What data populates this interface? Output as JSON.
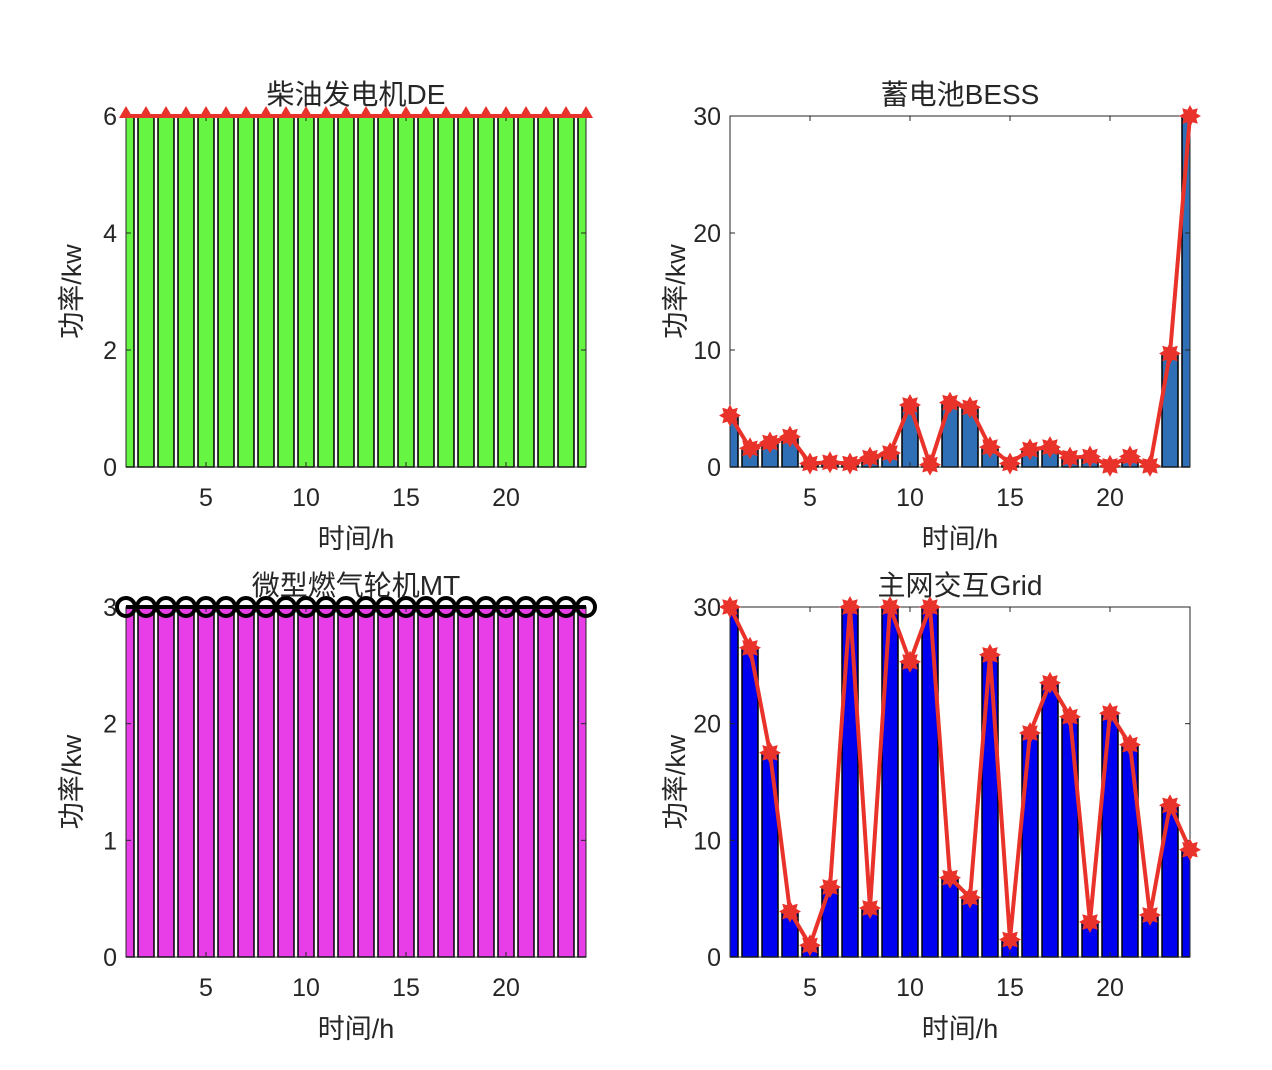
{
  "chart_data": [
    {
      "type": "bar",
      "title": "柴油发电机DE",
      "xlabel": "时间/h",
      "ylabel": "功率/kw",
      "x": [
        1,
        2,
        3,
        4,
        5,
        6,
        7,
        8,
        9,
        10,
        11,
        12,
        13,
        14,
        15,
        16,
        17,
        18,
        19,
        20,
        21,
        22,
        23,
        24
      ],
      "values": [
        6,
        6,
        6,
        6,
        6,
        6,
        6,
        6,
        6,
        6,
        6,
        6,
        6,
        6,
        6,
        6,
        6,
        6,
        6,
        6,
        6,
        6,
        6,
        6
      ],
      "xlim": [
        1,
        24
      ],
      "ylim": [
        0,
        6
      ],
      "xticks": [
        5,
        10,
        15,
        20
      ],
      "yticks": [
        0,
        2,
        4,
        6
      ],
      "bar_color": "#66f542",
      "line_color": "#e8322a",
      "marker": "triangle-up"
    },
    {
      "type": "bar",
      "title": "蓄电池BESS",
      "xlabel": "时间/h",
      "ylabel": "功率/kw",
      "x": [
        1,
        2,
        3,
        4,
        5,
        6,
        7,
        8,
        9,
        10,
        11,
        12,
        13,
        14,
        15,
        16,
        17,
        18,
        19,
        20,
        21,
        22,
        23,
        24
      ],
      "values": [
        4.4,
        1.6,
        2.1,
        2.6,
        0.3,
        0.4,
        0.3,
        0.8,
        1.2,
        5.3,
        0.2,
        5.5,
        5.1,
        1.7,
        0.3,
        1.5,
        1.7,
        0.8,
        0.9,
        0.1,
        0.9,
        0.1,
        9.7,
        30
      ],
      "xlim": [
        1,
        24
      ],
      "ylim": [
        0,
        30
      ],
      "xticks": [
        5,
        10,
        15,
        20
      ],
      "yticks": [
        0,
        10,
        20,
        30
      ],
      "bar_color": "#2f6fb5",
      "line_color": "#e8322a",
      "marker": "star"
    },
    {
      "type": "bar",
      "title": "微型燃气轮机MT",
      "xlabel": "时间/h",
      "ylabel": "功率/kw",
      "x": [
        1,
        2,
        3,
        4,
        5,
        6,
        7,
        8,
        9,
        10,
        11,
        12,
        13,
        14,
        15,
        16,
        17,
        18,
        19,
        20,
        21,
        22,
        23,
        24
      ],
      "values": [
        3,
        3,
        3,
        3,
        3,
        3,
        3,
        3,
        3,
        3,
        3,
        3,
        3,
        3,
        3,
        3,
        3,
        3,
        3,
        3,
        3,
        3,
        3,
        3
      ],
      "xlim": [
        1,
        24
      ],
      "ylim": [
        0,
        3
      ],
      "xticks": [
        5,
        10,
        15,
        20
      ],
      "yticks": [
        0,
        1,
        2,
        3
      ],
      "bar_color": "#e83ee8",
      "line_color": "#000000",
      "marker": "circle"
    },
    {
      "type": "bar",
      "title": "主网交互Grid",
      "xlabel": "时间/h",
      "ylabel": "功率/kw",
      "x": [
        1,
        2,
        3,
        4,
        5,
        6,
        7,
        8,
        9,
        10,
        11,
        12,
        13,
        14,
        15,
        16,
        17,
        18,
        19,
        20,
        21,
        22,
        23,
        24
      ],
      "values": [
        30,
        26.5,
        17.5,
        3.9,
        1.0,
        6.0,
        30,
        4.2,
        30,
        25.3,
        30,
        6.8,
        5.1,
        25.9,
        1.5,
        19.2,
        23.5,
        20.6,
        3.0,
        20.9,
        18.2,
        3.6,
        13.0,
        9.2
      ],
      "xlim": [
        1,
        24
      ],
      "ylim": [
        0,
        30
      ],
      "xticks": [
        5,
        10,
        15,
        20
      ],
      "yticks": [
        0,
        10,
        20,
        30
      ],
      "bar_color": "#0000f0",
      "line_color": "#e8322a",
      "marker": "star"
    }
  ]
}
